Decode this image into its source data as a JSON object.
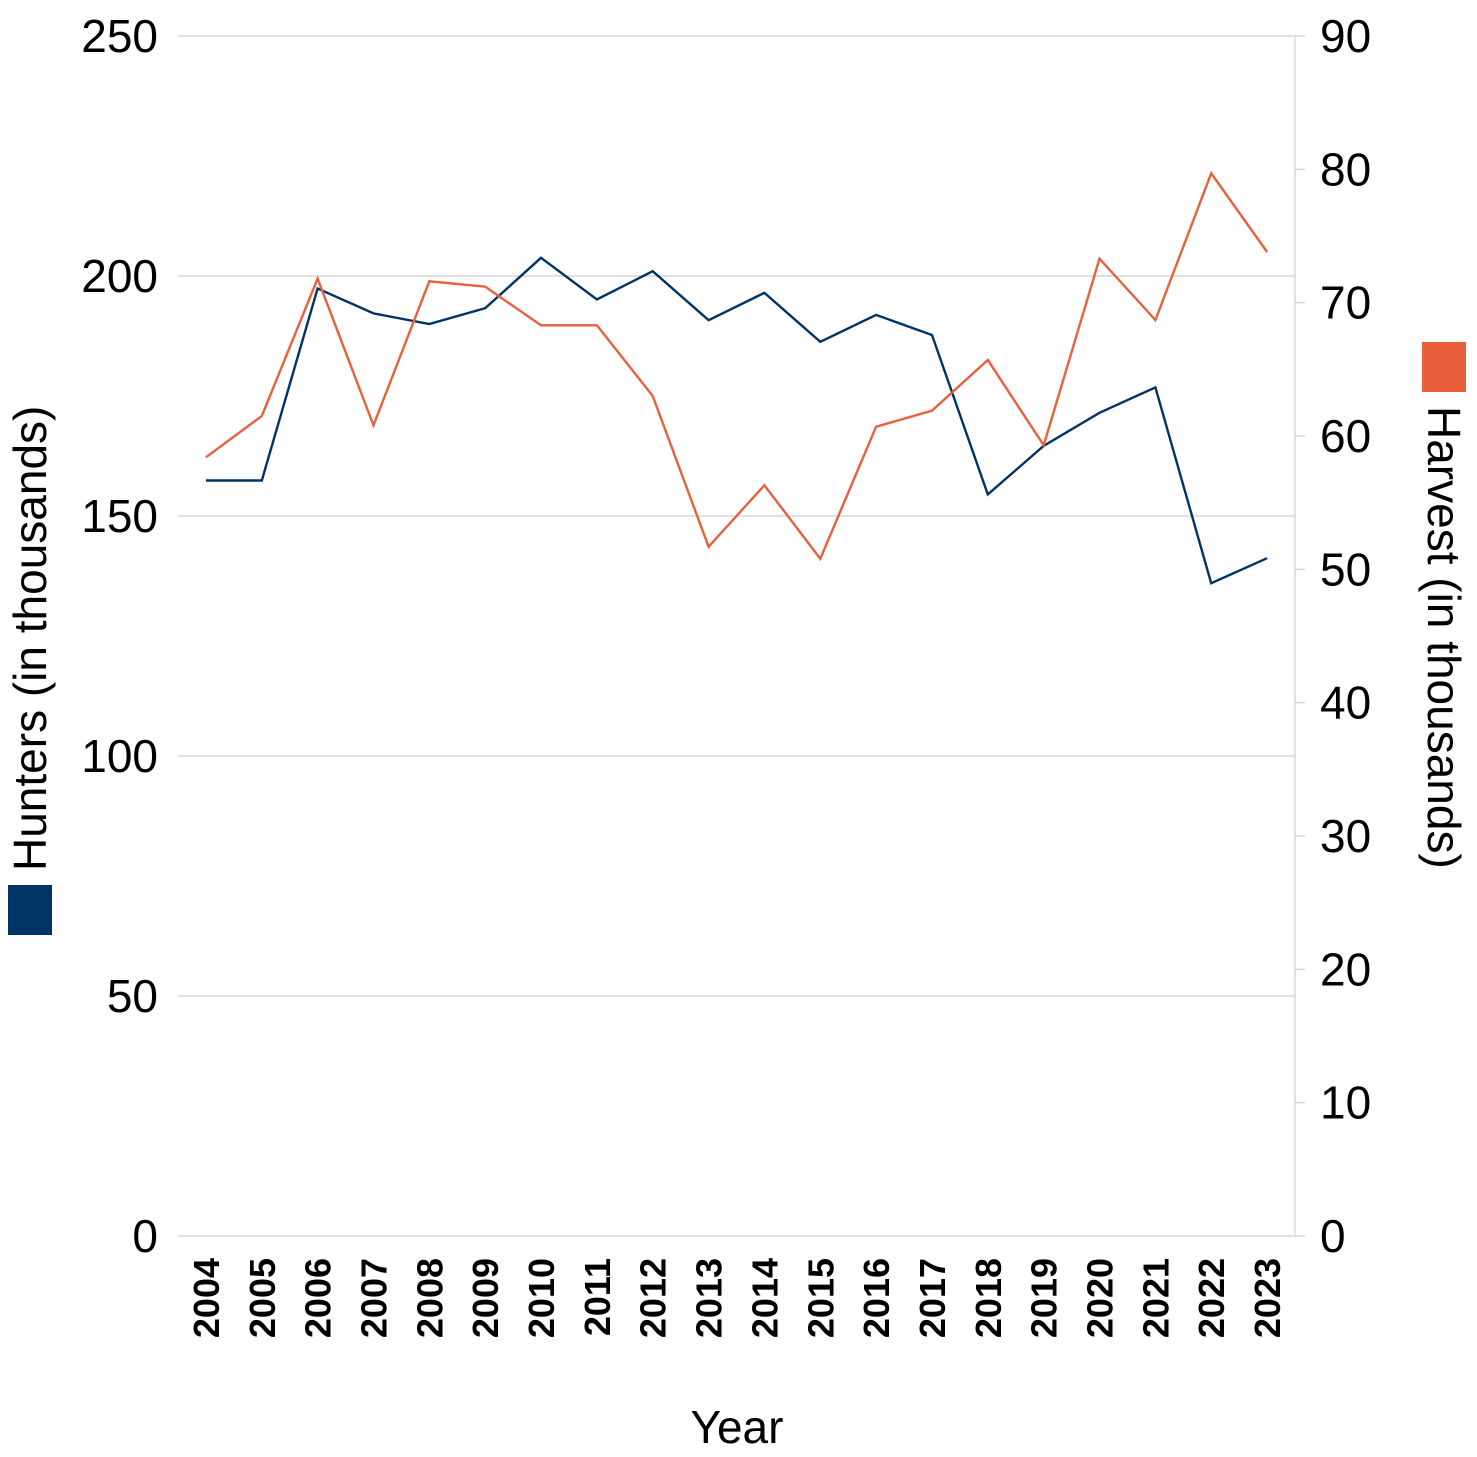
{
  "chart_data": {
    "type": "line",
    "title": "",
    "xlabel": "Year",
    "categories": [
      "2004",
      "2005",
      "2006",
      "2007",
      "2008",
      "2009",
      "2010",
      "2011",
      "2012",
      "2013",
      "2014",
      "2015",
      "2016",
      "2017",
      "2018",
      "2019",
      "2020",
      "2021",
      "2022",
      "2023"
    ],
    "series": [
      {
        "name": "Hunters (in thousands)",
        "axis": "left",
        "color": "#003366",
        "values": [
          157.4,
          157.4,
          197.4,
          192.2,
          190.0,
          193.3,
          203.8,
          195.1,
          201.0,
          190.8,
          196.5,
          186.3,
          191.9,
          187.7,
          154.5,
          164.6,
          171.5,
          176.8,
          136.0,
          141.2
        ]
      },
      {
        "name": "Harvest (in thousands)",
        "axis": "right",
        "color": "#e8603c",
        "values": [
          58.4,
          61.5,
          71.8,
          60.8,
          71.6,
          71.2,
          68.3,
          68.3,
          63.0,
          51.7,
          56.3,
          50.8,
          60.7,
          61.9,
          65.7,
          59.3,
          73.3,
          68.7,
          79.7,
          73.8
        ]
      }
    ],
    "y_left": {
      "label": "Hunters (in thousands)",
      "range": [
        0,
        250
      ],
      "ticks": [
        "0",
        "50",
        "100",
        "150",
        "200",
        "250"
      ]
    },
    "y_right": {
      "label": "Harvest (in thousands)",
      "range": [
        0,
        90
      ],
      "ticks": [
        "0",
        "10",
        "20",
        "30",
        "40",
        "50",
        "60",
        "70",
        "80",
        "90"
      ]
    },
    "grid": true,
    "legend": "embedded in axis titles"
  }
}
